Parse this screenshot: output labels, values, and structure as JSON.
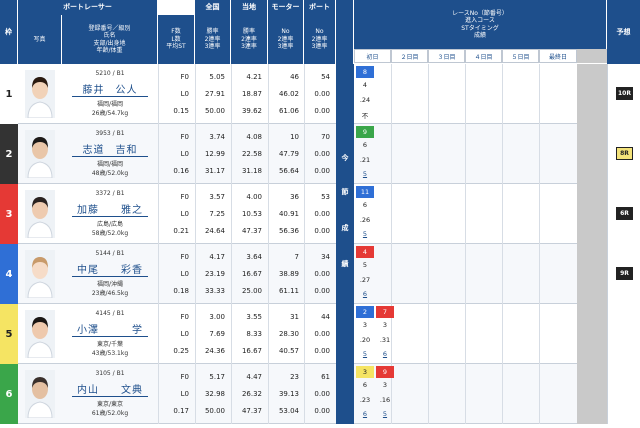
{
  "header": {
    "waku": "枠",
    "boat_racer": "ボートレーサー",
    "photo": "写真",
    "reg_lines": [
      "登録番号／級別",
      "氏名",
      "支部/出身地",
      "年齢/体重"
    ],
    "zenkoku": "全国",
    "tochi": "当地",
    "motor": "モーター",
    "boat": "ボート",
    "fcol": [
      "F数",
      "L数",
      "平均ST"
    ],
    "winrate": [
      "勝率",
      "2連率",
      "3連率"
    ],
    "numrate": [
      "No",
      "2連率",
      "3連率"
    ],
    "race_lines": [
      "レースNo（節番号）",
      "進入コース",
      "STタイミング",
      "成績"
    ],
    "yoso": "予想",
    "days": [
      "初日",
      "２日目",
      "３日目",
      "４日目",
      "５日目",
      "最終日"
    ],
    "setsu": [
      "今",
      "節",
      "成",
      "績"
    ]
  },
  "racers": [
    {
      "waku": "1",
      "waku_bg": "#ffffff",
      "waku_fg": "#222222",
      "reg": "5210 / B1",
      "name": "藤井　公人",
      "branch": "福岡/福岡",
      "age": "26歳/54.7kg",
      "f": "F0",
      "l": "L0",
      "st": "0.15",
      "z1": "5.05",
      "z2": "27.91",
      "z3": "50.00",
      "t1": "4.21",
      "t2": "18.87",
      "t3": "39.62",
      "m1": "46",
      "m2": "46.02",
      "m3": "61.06",
      "b1": "54",
      "b2": "0.00",
      "b3": "0.00",
      "series": [
        {
          "race": "8",
          "bg": "#2f6fd6",
          "fg": "#ffffff",
          "course": "4",
          "st": ".24",
          "res": "不",
          "res_link": false
        }
      ],
      "forecast": "10R",
      "fc_bg": "#222222",
      "fc_fg": "#ffffff",
      "hair": "#2a1a10",
      "skin": "#f1d2b8"
    },
    {
      "waku": "2",
      "waku_bg": "#333333",
      "waku_fg": "#ffffff",
      "reg": "3953 / B1",
      "name": "志道　吉和",
      "branch": "福岡/福岡",
      "age": "48歳/52.0kg",
      "f": "F0",
      "l": "L0",
      "st": "0.16",
      "z1": "3.74",
      "z2": "12.99",
      "z3": "31.17",
      "t1": "4.08",
      "t2": "22.58",
      "t3": "31.18",
      "m1": "10",
      "m2": "47.79",
      "m3": "56.64",
      "b1": "70",
      "b2": "0.00",
      "b3": "0.00",
      "series": [
        {
          "race": "9",
          "bg": "#3aa64a",
          "fg": "#ffffff",
          "course": "6",
          "st": ".21",
          "res": "5",
          "res_link": true
        }
      ],
      "forecast": "8R",
      "fc_bg": "#f3e27a",
      "fc_fg": "#222222",
      "hair": "#1d1a18",
      "skin": "#e9c6a8"
    },
    {
      "waku": "3",
      "waku_bg": "#e53935",
      "waku_fg": "#ffffff",
      "reg": "3372 / B1",
      "name": "加藤　　雅之",
      "branch": "広島/広島",
      "age": "58歳/52.0kg",
      "f": "F0",
      "l": "L0",
      "st": "0.21",
      "z1": "3.57",
      "z2": "7.25",
      "z3": "24.64",
      "t1": "4.00",
      "t2": "10.53",
      "t3": "47.37",
      "m1": "36",
      "m2": "40.91",
      "m3": "56.36",
      "b1": "53",
      "b2": "0.00",
      "b3": "0.00",
      "series": [
        {
          "race": "11",
          "bg": "#2f6fd6",
          "fg": "#ffffff",
          "course": "6",
          "st": ".26",
          "res": "5",
          "res_link": true
        }
      ],
      "forecast": "6R",
      "fc_bg": "#222222",
      "fc_fg": "#ffffff",
      "hair": "#2a2220",
      "skin": "#eecbb0"
    },
    {
      "waku": "4",
      "waku_bg": "#2f6fd6",
      "waku_fg": "#ffffff",
      "reg": "5144 / B1",
      "name": "中尾　　彩香",
      "branch": "福岡/沖縄",
      "age": "23歳/46.5kg",
      "f": "F0",
      "l": "L0",
      "st": "0.18",
      "z1": "4.17",
      "z2": "23.19",
      "z3": "33.33",
      "t1": "3.64",
      "t2": "16.67",
      "t3": "25.00",
      "m1": "7",
      "m2": "38.89",
      "m3": "61.11",
      "b1": "34",
      "b2": "0.00",
      "b3": "0.00",
      "series": [
        {
          "race": "4",
          "bg": "#e53935",
          "fg": "#ffffff",
          "course": "5",
          "st": ".27",
          "res": "6",
          "res_link": true
        }
      ],
      "forecast": "9R",
      "fc_bg": "#222222",
      "fc_fg": "#ffffff",
      "hair": "#c89a6a",
      "skin": "#f6dcc8"
    },
    {
      "waku": "5",
      "waku_bg": "#f5e463",
      "waku_fg": "#222222",
      "reg": "4145 / B1",
      "name": "小澤　　　学",
      "branch": "東京/千葉",
      "age": "43歳/53.1kg",
      "f": "F0",
      "l": "L0",
      "st": "0.25",
      "z1": "3.00",
      "z2": "7.69",
      "z3": "24.36",
      "t1": "3.55",
      "t2": "8.33",
      "t3": "16.67",
      "m1": "31",
      "m2": "28.30",
      "m3": "40.57",
      "b1": "44",
      "b2": "0.00",
      "b3": "0.00",
      "series": [
        {
          "race": "2",
          "bg": "#2f6fd6",
          "fg": "#ffffff",
          "course": "3",
          "st": ".20",
          "res": "5",
          "res_link": true
        },
        {
          "race": "7",
          "bg": "#e53935",
          "fg": "#ffffff",
          "course": "3",
          "st": ".31",
          "res": "6",
          "res_link": true
        }
      ],
      "forecast": "",
      "fc_bg": "#ffffff",
      "fc_fg": "#222222",
      "hair": "#1a1614",
      "skin": "#eec9ad"
    },
    {
      "waku": "6",
      "waku_bg": "#3aa64a",
      "waku_fg": "#ffffff",
      "reg": "3105 / B1",
      "name": "内山　　文典",
      "branch": "東京/東京",
      "age": "61歳/52.0kg",
      "f": "F0",
      "l": "L0",
      "st": "0.17",
      "z1": "5.17",
      "z2": "32.98",
      "z3": "50.00",
      "t1": "4.47",
      "t2": "26.32",
      "t3": "47.37",
      "m1": "23",
      "m2": "39.13",
      "m3": "53.04",
      "b1": "61",
      "b2": "0.00",
      "b3": "0.00",
      "series": [
        {
          "race": "3",
          "bg": "#f5e463",
          "fg": "#222222",
          "course": "6",
          "st": ".23",
          "res": "6",
          "res_link": true
        },
        {
          "race": "9",
          "bg": "#e53935",
          "fg": "#ffffff",
          "course": "3",
          "st": ".16",
          "res": "5",
          "res_link": true
        }
      ],
      "forecast": "",
      "fc_bg": "#ffffff",
      "fc_fg": "#222222",
      "hair": "#3a302c",
      "skin": "#e4c0a2"
    }
  ]
}
